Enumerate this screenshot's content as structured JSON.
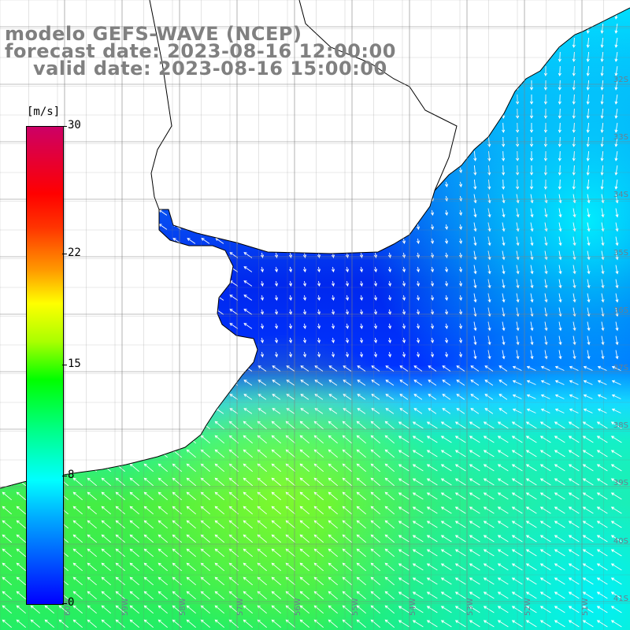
{
  "map": {
    "title_line1": "modelo GEFS-WAVE (NCEP)",
    "title_line2": "forecast date: 2023-08-16 12:00:00",
    "title_line3": "valid date: 2023-08-16 15:00:00",
    "variable": "wind speed and direction",
    "grid": true,
    "lat_labels": [
      "32S",
      "33S",
      "34S",
      "35S",
      "36S",
      "37S",
      "38S",
      "39S",
      "40S",
      "41S"
    ],
    "lon_labels": [
      "60W",
      "59W",
      "58W",
      "57W",
      "56W",
      "55W",
      "54W",
      "53W",
      "52W",
      "51W"
    ],
    "colors": {
      "land": "#ffffff",
      "coastline": "#000000",
      "grid": "#808080",
      "arrow": "#ffffff"
    }
  },
  "colorbar": {
    "unit": "[m/s]",
    "min": 0,
    "max": 30,
    "ticks": [
      "30",
      "22",
      "15",
      "8",
      "0"
    ],
    "tick_values": [
      30,
      22,
      15,
      8,
      0
    ]
  }
}
